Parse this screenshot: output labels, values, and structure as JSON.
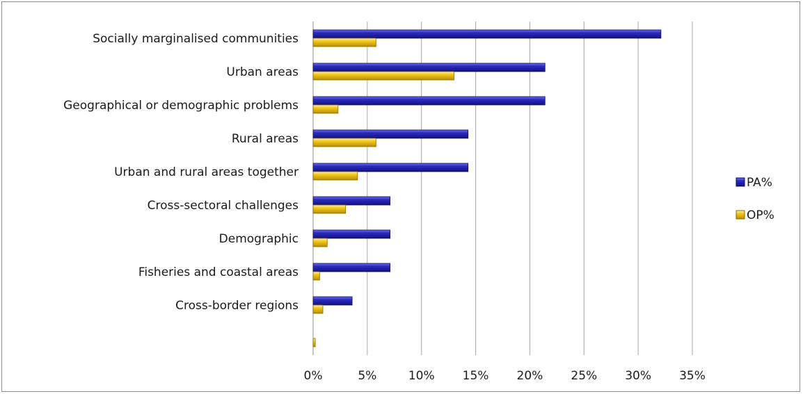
{
  "chart_data": {
    "type": "bar",
    "orientation": "horizontal",
    "categories": [
      "Socially marginalised communities",
      "Urban areas",
      "Geographical or demographic problems",
      "Rural areas",
      "Urban and rural areas together",
      "Cross-sectoral challenges",
      "Demographic",
      "Fisheries and coastal areas",
      "Cross-border regions",
      ""
    ],
    "series": [
      {
        "name": "PA%",
        "color": "#1f1fa6",
        "values": [
          32.1,
          21.4,
          21.4,
          14.3,
          14.3,
          7.1,
          7.1,
          7.1,
          3.6,
          0
        ]
      },
      {
        "name": "OP%",
        "color": "#f0c419",
        "values": [
          5.8,
          13.0,
          2.3,
          5.8,
          4.1,
          3.0,
          1.3,
          0.6,
          0.9,
          0.2
        ]
      }
    ],
    "xlim": [
      0,
      35
    ],
    "xticks": [
      "0%",
      "5%",
      "10%",
      "15%",
      "20%",
      "25%",
      "30%",
      "35%"
    ],
    "xtick_values": [
      0,
      5,
      10,
      15,
      20,
      25,
      30,
      35
    ],
    "grid": true,
    "legend_position": "right"
  }
}
